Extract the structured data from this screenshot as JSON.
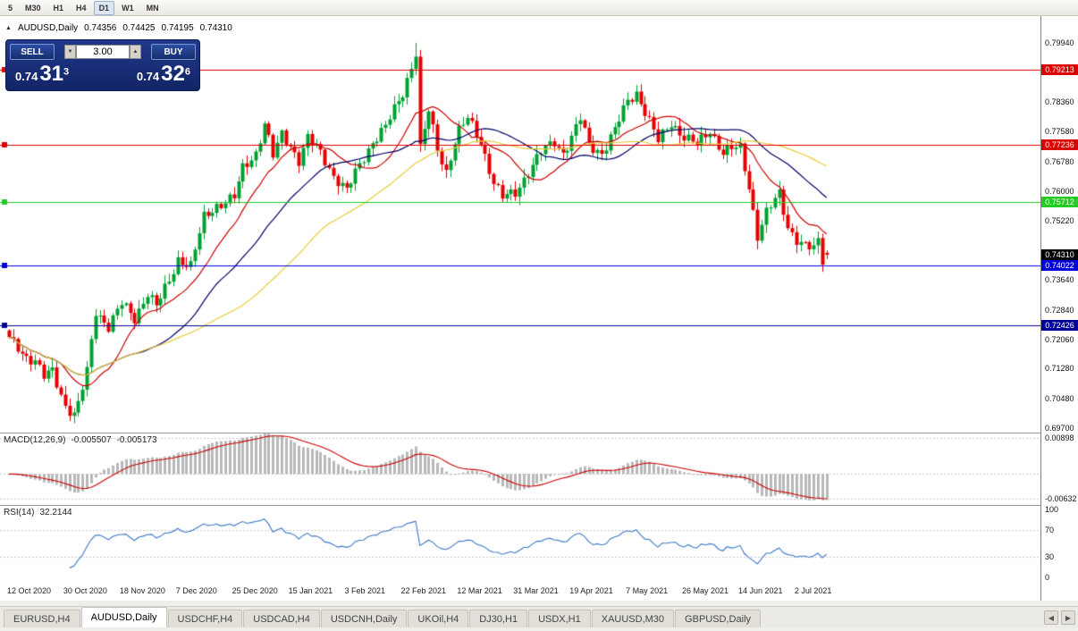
{
  "toolbar": {
    "timeframes": [
      "5",
      "M30",
      "H1",
      "H4",
      "D1",
      "W1",
      "MN"
    ],
    "active": "D1"
  },
  "chart_header": {
    "symbol": "AUDUSD,Daily",
    "open": "0.74356",
    "high": "0.74425",
    "low": "0.74195",
    "close": "0.74310"
  },
  "icons": {
    "collapse": "▲",
    "spin_up": "▲",
    "spin_down": "▼",
    "scroll_left": "◀",
    "scroll_right": "▶"
  },
  "one_click": {
    "sell_label": "SELL",
    "buy_label": "BUY",
    "volume": "3.00",
    "sell_price": {
      "base": "0.74",
      "pips": "31",
      "sup": "3"
    },
    "buy_price": {
      "base": "0.74",
      "pips": "32",
      "sup": "6"
    }
  },
  "macd_panel": {
    "title": "MACD(12,26,9)",
    "value": "-0.005507",
    "signal": "-0.005173",
    "scale_max": "0.00898",
    "scale_min": "-0.00632"
  },
  "rsi_panel": {
    "title": "RSI(14)",
    "value": "32.2144",
    "scale": [
      "100",
      "70",
      "30",
      "0"
    ]
  },
  "tabs": {
    "items": [
      "EURUSD,H4",
      "AUDUSD,Daily",
      "USDCHF,H4",
      "USDCAD,H4",
      "USDCNH,Daily",
      "UKOil,H4",
      "DJ30,H1",
      "USDX,H1",
      "XAUUSD,M30",
      "GBPUSD,Daily"
    ],
    "active_index": 1
  },
  "chart_data": {
    "type": "candlestick",
    "symbol": "AUDUSD",
    "timeframe": "Daily",
    "ohlc": {
      "open": 0.74356,
      "high": 0.74425,
      "low": 0.74195,
      "close": 0.7431
    },
    "y_range": [
      0.6958,
      0.8065
    ],
    "y_ticks": [
      "0.79940",
      "0.78360",
      "0.77580",
      "0.76780",
      "0.76000",
      "0.75220",
      "0.73640",
      "0.72840",
      "0.72060",
      "0.71280",
      "0.70480",
      "0.69700"
    ],
    "x_labels": [
      "12 Oct 2020",
      "30 Oct 2020",
      "18 Nov 2020",
      "7 Dec 2020",
      "25 Dec 2020",
      "15 Jan 2021",
      "3 Feb 2021",
      "22 Feb 2021",
      "12 Mar 2021",
      "31 Mar 2021",
      "19 Apr 2021",
      "7 May 2021",
      "26 May 2021",
      "14 Jun 2021",
      "2 Jul 2021"
    ],
    "x_label_step": 13,
    "num_candles": 190,
    "price_path": [
      [
        0,
        0.7205
      ],
      [
        2,
        0.7185
      ],
      [
        4,
        0.716
      ],
      [
        6,
        0.7148
      ],
      [
        8,
        0.7105
      ],
      [
        10,
        0.7122
      ],
      [
        13,
        0.703
      ],
      [
        15,
        0.7005
      ],
      [
        16,
        0.7032
      ],
      [
        18,
        0.712
      ],
      [
        20,
        0.7282
      ],
      [
        23,
        0.724
      ],
      [
        26,
        0.73
      ],
      [
        29,
        0.7262
      ],
      [
        32,
        0.733
      ],
      [
        34,
        0.7292
      ],
      [
        37,
        0.7362
      ],
      [
        39,
        0.742
      ],
      [
        42,
        0.74
      ],
      [
        45,
        0.753
      ],
      [
        48,
        0.7562
      ],
      [
        52,
        0.7582
      ],
      [
        54,
        0.766
      ],
      [
        57,
        0.7702
      ],
      [
        59,
        0.778
      ],
      [
        61,
        0.7692
      ],
      [
        63,
        0.775
      ],
      [
        65,
        0.7722
      ],
      [
        67,
        0.7682
      ],
      [
        69,
        0.774
      ],
      [
        72,
        0.7702
      ],
      [
        75,
        0.7642
      ],
      [
        78,
        0.76
      ],
      [
        81,
        0.767
      ],
      [
        84,
        0.7732
      ],
      [
        87,
        0.777
      ],
      [
        91,
        0.7862
      ],
      [
        94,
        0.7968
      ],
      [
        95,
        0.7712
      ],
      [
        97,
        0.7812
      ],
      [
        99,
        0.7712
      ],
      [
        101,
        0.7652
      ],
      [
        103,
        0.7732
      ],
      [
        104,
        0.776
      ],
      [
        106,
        0.7792
      ],
      [
        109,
        0.7732
      ],
      [
        112,
        0.7622
      ],
      [
        114,
        0.7582
      ],
      [
        117,
        0.7596
      ],
      [
        120,
        0.7652
      ],
      [
        123,
        0.7702
      ],
      [
        126,
        0.7732
      ],
      [
        128,
        0.7702
      ],
      [
        130,
        0.7742
      ],
      [
        132,
        0.7792
      ],
      [
        134,
        0.7722
      ],
      [
        137,
        0.7702
      ],
      [
        140,
        0.7762
      ],
      [
        143,
        0.784
      ],
      [
        145,
        0.7862
      ],
      [
        147,
        0.7812
      ],
      [
        150,
        0.7732
      ],
      [
        153,
        0.7782
      ],
      [
        156,
        0.7744
      ],
      [
        159,
        0.7722
      ],
      [
        162,
        0.7762
      ],
      [
        165,
        0.7702
      ],
      [
        167,
        0.7712
      ],
      [
        169,
        0.7712
      ],
      [
        171,
        0.7612
      ],
      [
        173,
        0.7482
      ],
      [
        175,
        0.7542
      ],
      [
        178,
        0.7592
      ],
      [
        180,
        0.7506
      ],
      [
        182,
        0.7472
      ],
      [
        184,
        0.7452
      ],
      [
        186,
        0.7446
      ],
      [
        187,
        0.7466
      ],
      [
        188,
        0.7418
      ],
      [
        189,
        0.7431
      ]
    ],
    "peaks": {
      "high_index": 94,
      "high": 0.7994,
      "low_index": 15,
      "low": 0.6983
    },
    "horizontal_lines": [
      {
        "price": 0.79213,
        "label": "0.79213",
        "color": "#dd0000"
      },
      {
        "price": 0.77236,
        "label": "0.77236",
        "color": "#dd0000"
      },
      {
        "price": 0.75712,
        "label": "0.75712",
        "color": "#22cc22"
      },
      {
        "price": 0.74022,
        "label": "0.74022",
        "color": "#0000dd"
      },
      {
        "price": 0.72426,
        "label": "0.72426",
        "color": "#000099"
      }
    ],
    "current_price": {
      "value": 0.7431,
      "label": "0.74310",
      "color": "#000000"
    },
    "moving_averages": [
      {
        "period": 13,
        "color": "#cc0000"
      },
      {
        "period": 30,
        "color": "#000066"
      },
      {
        "period": 55,
        "color": "#e8cc3a"
      }
    ],
    "candle_colors": {
      "up": "#00a032",
      "down": "#e60000"
    },
    "indicators": {
      "macd": {
        "params": [
          12,
          26,
          9
        ],
        "value": -0.005507,
        "signal": -0.005173,
        "range": [
          -0.0078,
          0.0102
        ],
        "levels": [
          0.00898,
          -0.00632
        ],
        "hist_color": "#b8b8b8",
        "signal_color": "#cc0000"
      },
      "rsi": {
        "period": 14,
        "value": 32.2144,
        "range": [
          -5,
          105
        ],
        "levels": [
          30,
          70
        ],
        "color": "#3c78c8"
      }
    }
  }
}
